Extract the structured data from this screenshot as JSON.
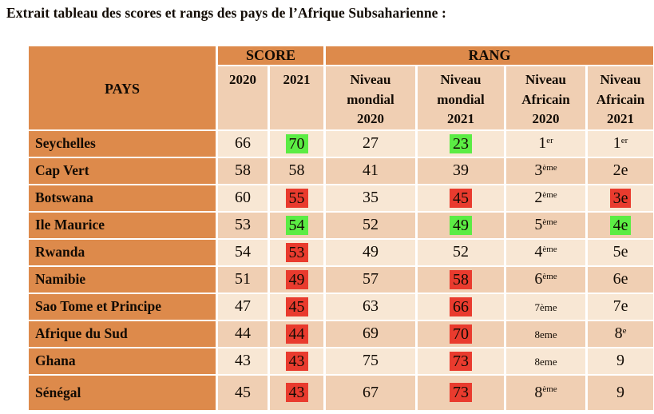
{
  "title": "Extrait tableau des scores et rangs des pays de l’Afrique Subsaharienne :",
  "colors": {
    "header_orange": "#DD8A4B",
    "row_light": "#F8E7D4",
    "row_dark": "#F0CFB3",
    "highlight_green": "#5BEC44",
    "highlight_red": "#E93B2E",
    "grid_white": "#FFFFFF"
  },
  "table": {
    "header": {
      "pays": "PAYS",
      "score": "SCORE",
      "rang": "RANG",
      "sub": [
        "2020",
        "2021",
        "Niveau\nmondial\n2020",
        "Niveau\nmondial\n2021",
        "Niveau\nAfricain\n2020",
        "Niveau\nAfricain\n2021"
      ]
    },
    "rows": [
      {
        "pays": "Seychelles",
        "cells": [
          {
            "text": "66"
          },
          {
            "text": "70",
            "highlight": "green"
          },
          {
            "text": "27"
          },
          {
            "text": "23",
            "highlight": "green"
          },
          {
            "text": "1",
            "sup": "er"
          },
          {
            "text": "1",
            "sup": "er"
          }
        ]
      },
      {
        "pays": "Cap Vert",
        "cells": [
          {
            "text": "58"
          },
          {
            "text": "58"
          },
          {
            "text": "41"
          },
          {
            "text": "39"
          },
          {
            "text": "3",
            "sup": "ème"
          },
          {
            "text": "2e"
          }
        ]
      },
      {
        "pays": "Botswana",
        "cells": [
          {
            "text": "60"
          },
          {
            "text": "55",
            "highlight": "red"
          },
          {
            "text": "35"
          },
          {
            "text": "45",
            "highlight": "red"
          },
          {
            "text": "2",
            "sup": "ème"
          },
          {
            "text": "3e",
            "highlight": "red"
          }
        ]
      },
      {
        "pays": "Ile Maurice",
        "cells": [
          {
            "text": "53"
          },
          {
            "text": "54",
            "highlight": "green"
          },
          {
            "text": "52"
          },
          {
            "text": "49",
            "highlight": "green"
          },
          {
            "text": "5",
            "sup": "ème"
          },
          {
            "text": "4e",
            "highlight": "green"
          }
        ]
      },
      {
        "pays": "Rwanda",
        "cells": [
          {
            "text": "54"
          },
          {
            "text": "53",
            "highlight": "red"
          },
          {
            "text": "49"
          },
          {
            "text": "52"
          },
          {
            "text": "4",
            "sup": "ème"
          },
          {
            "text": "5e"
          }
        ]
      },
      {
        "pays": "Namibie",
        "cells": [
          {
            "text": "51"
          },
          {
            "text": "49",
            "highlight": "red"
          },
          {
            "text": "57"
          },
          {
            "text": "58",
            "highlight": "red"
          },
          {
            "text": "6",
            "sup": "ème"
          },
          {
            "text": "6e"
          }
        ]
      },
      {
        "pays": "Sao Tome et Principe",
        "cells": [
          {
            "text": "47"
          },
          {
            "text": "45",
            "highlight": "red"
          },
          {
            "text": "63"
          },
          {
            "text": "66",
            "highlight": "red"
          },
          {
            "text": "7ème",
            "small": true
          },
          {
            "text": "7e"
          }
        ]
      },
      {
        "pays": "Afrique du Sud",
        "cells": [
          {
            "text": "44"
          },
          {
            "text": "44",
            "highlight": "red"
          },
          {
            "text": "69"
          },
          {
            "text": "70",
            "highlight": "red"
          },
          {
            "text": "8eme",
            "small": true
          },
          {
            "text": "8",
            "sup": "e"
          }
        ]
      },
      {
        "pays": "Ghana",
        "cells": [
          {
            "text": "43"
          },
          {
            "text": "43",
            "highlight": "red"
          },
          {
            "text": "75"
          },
          {
            "text": "73",
            "highlight": "red"
          },
          {
            "text": "8eme",
            "small": true
          },
          {
            "text": "9"
          }
        ]
      },
      {
        "pays": "Sénégal",
        "cells": [
          {
            "text": "45"
          },
          {
            "text": "43",
            "highlight": "red"
          },
          {
            "text": "67"
          },
          {
            "text": "73",
            "highlight": "red"
          },
          {
            "text": "8",
            "sup": "ème"
          },
          {
            "text": "9"
          }
        ]
      }
    ]
  }
}
